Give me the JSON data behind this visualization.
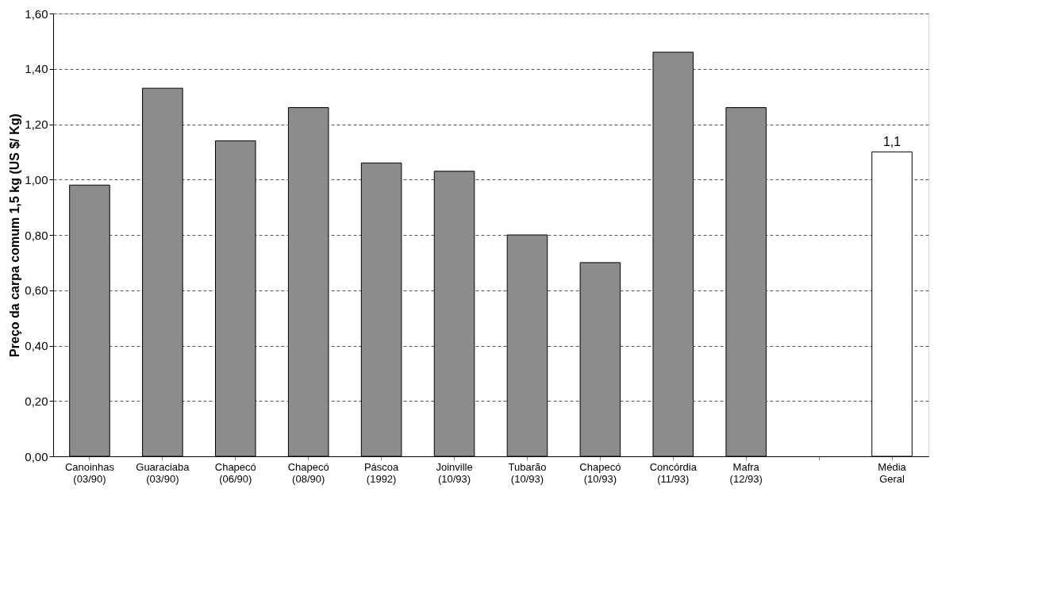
{
  "chart_data": {
    "type": "bar",
    "ylabel": "Preço da carpa comum 1,5 kg (US $/ Kg)",
    "categories": [
      "Canoinhas\n(03/90)",
      "Guaraciaba\n(03/90)",
      "Chapecó\n(06/90)",
      "Chapecó\n(08/90)",
      "Páscoa\n(1992)",
      "Joinville\n(10/93)",
      "Tubarão\n(10/93)",
      "Chapecó\n(10/93)",
      "Concórdia\n(11/93)",
      "Mafra\n(12/93)",
      null,
      "Média\nGeral"
    ],
    "values": [
      0.98,
      1.33,
      1.14,
      1.26,
      1.06,
      1.03,
      0.8,
      0.7,
      1.46,
      1.26,
      null,
      1.1
    ],
    "colors": [
      "#8c8c8c",
      "#8c8c8c",
      "#8c8c8c",
      "#8c8c8c",
      "#8c8c8c",
      "#8c8c8c",
      "#8c8c8c",
      "#8c8c8c",
      "#8c8c8c",
      "#8c8c8c",
      "#8c8c8c",
      "#ffffff"
    ],
    "value_labels": [
      null,
      null,
      null,
      null,
      null,
      null,
      null,
      null,
      null,
      null,
      null,
      "1,1"
    ],
    "ylim": [
      0,
      1.6
    ],
    "yticks": [
      {
        "value": 0,
        "label": "0,00"
      },
      {
        "value": 0.2,
        "label": "0,20"
      },
      {
        "value": 0.4,
        "label": "0,40"
      },
      {
        "value": 0.6,
        "label": "0,60"
      },
      {
        "value": 0.8,
        "label": "0,80"
      },
      {
        "value": 1.0,
        "label": "1,00"
      },
      {
        "value": 1.2,
        "label": "1,20"
      },
      {
        "value": 1.4,
        "label": "1,40"
      },
      {
        "value": 1.6,
        "label": "1,60"
      }
    ],
    "grid": "y"
  }
}
